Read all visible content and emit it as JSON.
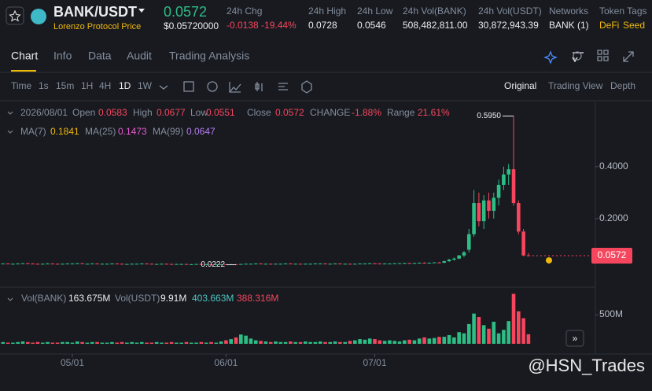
{
  "header": {
    "pair": "BANK/USDT",
    "price": "0.0572",
    "sub": "Lorenzo Protocol Price",
    "usd": "$0.05720000",
    "stats": [
      {
        "label": "24h Chg",
        "value": "-0.0138 -19.44%"
      },
      {
        "label": "24h High",
        "value": "0.0728"
      },
      {
        "label": "24h Low",
        "value": "0.0546"
      },
      {
        "label": "24h Vol(BANK)",
        "value": "508,482,811.00"
      },
      {
        "label": "24h Vol(USDT)",
        "value": "30,872,943.39"
      },
      {
        "label": "Networks",
        "value": "BANK (1)"
      }
    ],
    "tags_label": "Token Tags",
    "tags": [
      "DeFi",
      "Seed"
    ]
  },
  "tabs": [
    "Chart",
    "Info",
    "Data",
    "Audit",
    "Trading Analysis"
  ],
  "intervals": [
    "Time",
    "1s",
    "15m",
    "1H",
    "4H",
    "1D",
    "1W"
  ],
  "views": [
    "Original",
    "Trading View",
    "Depth"
  ],
  "watermark": "@HSN_Trades",
  "chart_data": {
    "type": "candlestick",
    "date": "2026/08/01",
    "ohlc_info": [
      {
        "label": "Open",
        "value": "0.0583"
      },
      {
        "label": "High",
        "value": "0.0677"
      },
      {
        "label": "Low",
        "value": "0.0551"
      },
      {
        "label": "Close",
        "value": "0.0572"
      },
      {
        "label": "CHANGE",
        "value": "-1.88%"
      },
      {
        "label": "Range",
        "value": "21.61%"
      }
    ],
    "ma_info": [
      {
        "label": "MA(7)",
        "value": "0.1841",
        "color": "#f0b90b"
      },
      {
        "label": "MA(25)",
        "value": "0.1473",
        "color": "#e85bd0"
      },
      {
        "label": "MA(99)",
        "value": "0.0647",
        "color": "#b77bf0"
      }
    ],
    "vol_info": [
      {
        "label": "Vol(BANK)",
        "value": "163.675M",
        "color": "#eaecef"
      },
      {
        "label": "Vol(USDT)",
        "value": "9.91M",
        "color": "#eaecef"
      },
      {
        "label": "",
        "value": "403.663M",
        "color": "#4fc3c0"
      },
      {
        "label": "",
        "value": "388.316M",
        "color": "#f6465d"
      }
    ],
    "up_color": "#2ebd85",
    "down_color": "#f6465d",
    "candles": [
      [
        0.026,
        0.028,
        0.025,
        0.027
      ],
      [
        0.027,
        0.028,
        0.026,
        0.026
      ],
      [
        0.026,
        0.027,
        0.025,
        0.026
      ],
      [
        0.026,
        0.028,
        0.025,
        0.027
      ],
      [
        0.027,
        0.029,
        0.026,
        0.028
      ],
      [
        0.028,
        0.029,
        0.026,
        0.027
      ],
      [
        0.027,
        0.028,
        0.026,
        0.026
      ],
      [
        0.026,
        0.027,
        0.024,
        0.025
      ],
      [
        0.025,
        0.027,
        0.024,
        0.026
      ],
      [
        0.026,
        0.028,
        0.025,
        0.027
      ],
      [
        0.027,
        0.028,
        0.025,
        0.026
      ],
      [
        0.026,
        0.027,
        0.025,
        0.025
      ],
      [
        0.025,
        0.027,
        0.024,
        0.026
      ],
      [
        0.026,
        0.028,
        0.025,
        0.027
      ],
      [
        0.027,
        0.028,
        0.026,
        0.027
      ],
      [
        0.027,
        0.029,
        0.026,
        0.028
      ],
      [
        0.028,
        0.029,
        0.026,
        0.026
      ],
      [
        0.026,
        0.027,
        0.025,
        0.026
      ],
      [
        0.026,
        0.028,
        0.025,
        0.027
      ],
      [
        0.027,
        0.028,
        0.025,
        0.025
      ],
      [
        0.025,
        0.027,
        0.024,
        0.026
      ],
      [
        0.026,
        0.027,
        0.025,
        0.026
      ],
      [
        0.026,
        0.028,
        0.025,
        0.027
      ],
      [
        0.027,
        0.028,
        0.026,
        0.026
      ],
      [
        0.026,
        0.027,
        0.025,
        0.025
      ],
      [
        0.025,
        0.026,
        0.024,
        0.025
      ],
      [
        0.025,
        0.027,
        0.024,
        0.026
      ],
      [
        0.026,
        0.027,
        0.025,
        0.026
      ],
      [
        0.026,
        0.028,
        0.025,
        0.027
      ],
      [
        0.027,
        0.028,
        0.026,
        0.026
      ],
      [
        0.026,
        0.027,
        0.025,
        0.025
      ],
      [
        0.025,
        0.026,
        0.024,
        0.025
      ],
      [
        0.025,
        0.027,
        0.024,
        0.026
      ],
      [
        0.026,
        0.027,
        0.025,
        0.025
      ],
      [
        0.025,
        0.026,
        0.024,
        0.024
      ],
      [
        0.024,
        0.026,
        0.023,
        0.025
      ],
      [
        0.025,
        0.026,
        0.024,
        0.025
      ],
      [
        0.025,
        0.026,
        0.024,
        0.024
      ],
      [
        0.024,
        0.025,
        0.023,
        0.024
      ],
      [
        0.024,
        0.026,
        0.023,
        0.025
      ],
      [
        0.025,
        0.026,
        0.024,
        0.024
      ],
      [
        0.024,
        0.025,
        0.023,
        0.024
      ],
      [
        0.024,
        0.025,
        0.023,
        0.023
      ],
      [
        0.023,
        0.025,
        0.023,
        0.024
      ],
      [
        0.024,
        0.025,
        0.023,
        0.024
      ],
      [
        0.024,
        0.025,
        0.023,
        0.023
      ],
      [
        0.023,
        0.025,
        0.0225,
        0.024
      ],
      [
        0.024,
        0.025,
        0.0222,
        0.023
      ],
      [
        0.023,
        0.026,
        0.023,
        0.025
      ],
      [
        0.025,
        0.027,
        0.024,
        0.026
      ],
      [
        0.026,
        0.027,
        0.025,
        0.026
      ],
      [
        0.026,
        0.028,
        0.025,
        0.027
      ],
      [
        0.027,
        0.028,
        0.026,
        0.026
      ],
      [
        0.026,
        0.027,
        0.025,
        0.026
      ],
      [
        0.026,
        0.027,
        0.025,
        0.025
      ],
      [
        0.025,
        0.027,
        0.024,
        0.026
      ],
      [
        0.026,
        0.027,
        0.025,
        0.026
      ],
      [
        0.026,
        0.028,
        0.025,
        0.027
      ],
      [
        0.027,
        0.028,
        0.026,
        0.026
      ],
      [
        0.026,
        0.027,
        0.025,
        0.026
      ],
      [
        0.026,
        0.027,
        0.025,
        0.025
      ],
      [
        0.025,
        0.027,
        0.024,
        0.026
      ],
      [
        0.026,
        0.027,
        0.025,
        0.026
      ],
      [
        0.026,
        0.028,
        0.025,
        0.027
      ],
      [
        0.027,
        0.028,
        0.026,
        0.027
      ],
      [
        0.027,
        0.028,
        0.026,
        0.026
      ],
      [
        0.026,
        0.027,
        0.025,
        0.026
      ],
      [
        0.026,
        0.028,
        0.025,
        0.027
      ],
      [
        0.027,
        0.028,
        0.026,
        0.026
      ],
      [
        0.026,
        0.027,
        0.025,
        0.026
      ],
      [
        0.026,
        0.027,
        0.025,
        0.025
      ],
      [
        0.025,
        0.027,
        0.024,
        0.026
      ],
      [
        0.026,
        0.028,
        0.025,
        0.027
      ],
      [
        0.027,
        0.028,
        0.026,
        0.027
      ],
      [
        0.027,
        0.029,
        0.026,
        0.028
      ],
      [
        0.028,
        0.029,
        0.026,
        0.027
      ],
      [
        0.027,
        0.028,
        0.026,
        0.026
      ],
      [
        0.026,
        0.028,
        0.025,
        0.027
      ],
      [
        0.027,
        0.028,
        0.026,
        0.027
      ],
      [
        0.027,
        0.029,
        0.026,
        0.028
      ],
      [
        0.028,
        0.029,
        0.027,
        0.028
      ],
      [
        0.028,
        0.03,
        0.027,
        0.029
      ],
      [
        0.029,
        0.03,
        0.027,
        0.028
      ],
      [
        0.028,
        0.03,
        0.027,
        0.029
      ],
      [
        0.029,
        0.031,
        0.028,
        0.03
      ],
      [
        0.03,
        0.032,
        0.028,
        0.029
      ],
      [
        0.029,
        0.031,
        0.028,
        0.03
      ],
      [
        0.03,
        0.032,
        0.029,
        0.031
      ],
      [
        0.031,
        0.033,
        0.029,
        0.03
      ],
      [
        0.03,
        0.038,
        0.028,
        0.036
      ],
      [
        0.036,
        0.045,
        0.033,
        0.042
      ],
      [
        0.042,
        0.05,
        0.038,
        0.046
      ],
      [
        0.046,
        0.06,
        0.044,
        0.058
      ],
      [
        0.058,
        0.075,
        0.052,
        0.07
      ],
      [
        0.08,
        0.16,
        0.07,
        0.14
      ],
      [
        0.14,
        0.31,
        0.13,
        0.26
      ],
      [
        0.26,
        0.3,
        0.17,
        0.19
      ],
      [
        0.19,
        0.29,
        0.16,
        0.27
      ],
      [
        0.27,
        0.3,
        0.2,
        0.23
      ],
      [
        0.23,
        0.3,
        0.2,
        0.28
      ],
      [
        0.28,
        0.35,
        0.25,
        0.33
      ],
      [
        0.33,
        0.4,
        0.31,
        0.37
      ],
      [
        0.37,
        0.41,
        0.33,
        0.39
      ],
      [
        0.39,
        0.595,
        0.25,
        0.26
      ],
      [
        0.26,
        0.27,
        0.14,
        0.15
      ],
      [
        0.15,
        0.16,
        0.055,
        0.058
      ],
      [
        0.0583,
        0.0677,
        0.0551,
        0.0572
      ]
    ],
    "volumes": [
      30000000.0,
      20000000.0,
      20000000.0,
      30000000.0,
      40000000.0,
      30000000.0,
      20000000.0,
      30000000.0,
      20000000.0,
      30000000.0,
      20000000.0,
      20000000.0,
      30000000.0,
      30000000.0,
      20000000.0,
      40000000.0,
      30000000.0,
      20000000.0,
      30000000.0,
      30000000.0,
      20000000.0,
      20000000.0,
      30000000.0,
      20000000.0,
      30000000.0,
      20000000.0,
      30000000.0,
      20000000.0,
      30000000.0,
      20000000.0,
      20000000.0,
      30000000.0,
      20000000.0,
      20000000.0,
      30000000.0,
      20000000.0,
      20000000.0,
      30000000.0,
      20000000.0,
      20000000.0,
      30000000.0,
      20000000.0,
      30000000.0,
      20000000.0,
      40000000.0,
      60000000.0,
      80000000.0,
      110000000.0,
      160000000.0,
      140000000.0,
      90000000.0,
      60000000.0,
      50000000.0,
      40000000.0,
      30000000.0,
      40000000.0,
      30000000.0,
      30000000.0,
      40000000.0,
      30000000.0,
      30000000.0,
      40000000.0,
      30000000.0,
      30000000.0,
      40000000.0,
      30000000.0,
      30000000.0,
      40000000.0,
      30000000.0,
      30000000.0,
      50000000.0,
      60000000.0,
      80000000.0,
      70000000.0,
      90000000.0,
      80000000.0,
      60000000.0,
      50000000.0,
      60000000.0,
      50000000.0,
      40000000.0,
      60000000.0,
      70000000.0,
      60000000.0,
      90000000.0,
      110000000.0,
      90000000.0,
      100000000.0,
      120000000.0,
      120000000.0,
      150000000.0,
      110000000.0,
      200000000.0,
      180000000.0,
      340000000.0,
      520000000.0,
      460000000.0,
      320000000.0,
      260000000.0,
      380000000.0,
      180000000.0,
      240000000.0,
      390000000.0,
      860000000.0,
      560000000.0,
      440000000.0,
      164000000.0
    ],
    "xlim": [
      -0.6,
      119.5
    ],
    "xticks": [
      {
        "value": 14,
        "label": "05/01"
      },
      {
        "value": 45,
        "label": "06/01"
      },
      {
        "value": 75,
        "label": "07/01"
      }
    ],
    "ylim": [
      -0.055,
      0.648
    ],
    "yticks": [
      {
        "value": 0.2,
        "label": "0.2000"
      },
      {
        "value": 0.4,
        "label": "0.4000"
      }
    ],
    "vlim": [
      0,
      880000000.0
    ],
    "vticks": [
      {
        "value": 500000000.0,
        "label": "500M"
      }
    ],
    "high_label": {
      "index": 103,
      "value": 0.595,
      "label": "0.5950"
    },
    "low_label": {
      "index": 47,
      "value": 0.0222
    },
    "last_price": 0.0572
  }
}
